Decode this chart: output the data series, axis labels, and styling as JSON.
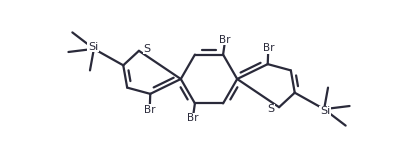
{
  "bg_color": "#ffffff",
  "line_color": "#2a2a3a",
  "text_color": "#2a2a3a",
  "line_width": 1.6,
  "font_size": 7.5,
  "fig_width": 4.18,
  "fig_height": 1.58,
  "dpi": 100,
  "xlim": [
    -4.5,
    4.5
  ],
  "ylim": [
    -2.0,
    2.0
  ]
}
